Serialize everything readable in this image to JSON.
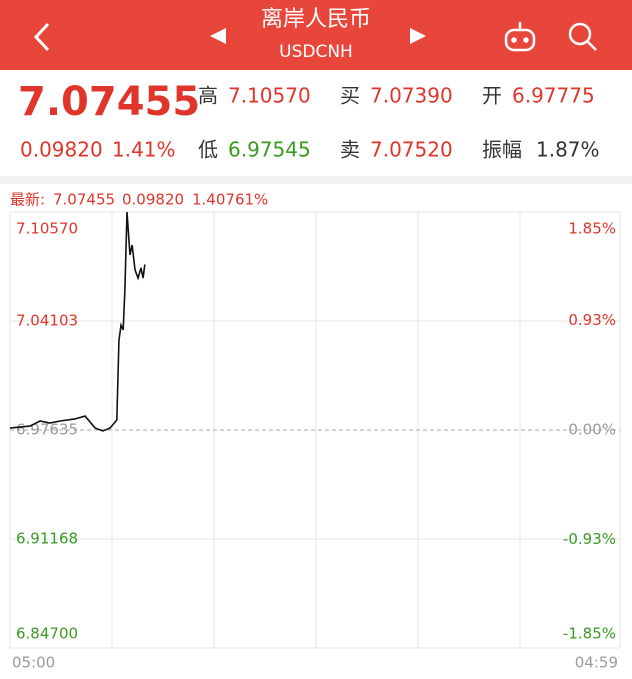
{
  "header": {
    "title": "离岸人民币",
    "subtitle": "USDCNH"
  },
  "quote": {
    "price": "7.07455",
    "change": "0.09820",
    "change_pct": "1.41%",
    "high_label": "高",
    "high": "7.10570",
    "low_label": "低",
    "low": "6.97545",
    "buy_label": "买",
    "buy": "7.07390",
    "sell_label": "卖",
    "sell": "7.07520",
    "open_label": "开",
    "open": "6.97775",
    "amplitude_label": "振幅",
    "amplitude": "1.87%"
  },
  "chart_data": {
    "type": "line",
    "latest": {
      "label": "最新:",
      "price": "7.07455",
      "change": "0.09820",
      "change_pct": "1.40761%"
    },
    "x": [
      0,
      47,
      71,
      94,
      118,
      153,
      177,
      201,
      219,
      236,
      252,
      257,
      262,
      267,
      271,
      276,
      283,
      288,
      295,
      302,
      309,
      314,
      318
    ],
    "series": [
      {
        "color": "#111111",
        "values": [
          6.9775,
          6.9787,
          6.9817,
          6.9805,
          6.9817,
          6.9829,
          6.9846,
          6.9775,
          6.9758,
          6.9775,
          6.9823,
          7.0297,
          7.0386,
          7.0357,
          7.0594,
          7.1057,
          7.0802,
          7.0861,
          7.0713,
          7.0665,
          7.0725,
          7.0665,
          7.07455
        ]
      }
    ],
    "xlim": [
      0,
      1439
    ],
    "xticks": [
      {
        "value": 0,
        "label": "05:00"
      },
      {
        "value": 1439,
        "label": "04:59"
      }
    ],
    "ylim": [
      6.847,
      7.1057
    ],
    "yticks": [
      {
        "value": 7.1057,
        "label": "7.10570"
      },
      {
        "value": 7.04103,
        "label": "7.04103"
      },
      {
        "value": 6.97635,
        "label": "6.97635"
      },
      {
        "value": 6.91168,
        "label": "6.91168"
      },
      {
        "value": 6.847,
        "label": "6.84700"
      }
    ],
    "y2lim": [
      -1.85,
      1.85
    ],
    "y2ticks": [
      {
        "value": 1.85,
        "label": "1.85%"
      },
      {
        "value": 0.93,
        "label": "0.93%"
      },
      {
        "value": 0,
        "label": "0.00%"
      },
      {
        "value": -0.93,
        "label": "-0.93%"
      },
      {
        "value": -1.85,
        "label": "-1.85%"
      }
    ],
    "grid": true
  }
}
